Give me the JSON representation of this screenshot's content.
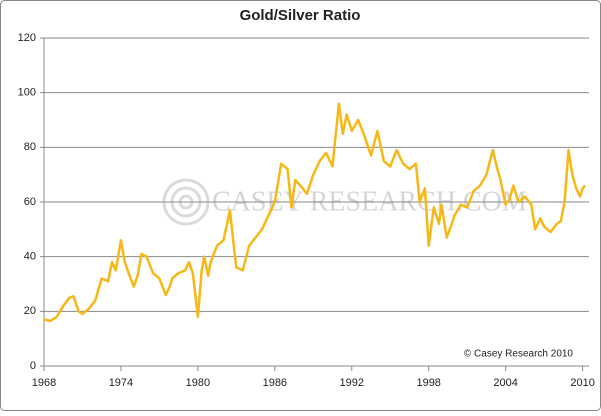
{
  "chart_data": {
    "type": "line",
    "title": "Gold/Silver Ratio",
    "watermark": "CASEY RESEARCH.COM",
    "annotation": "© Casey Research 2010",
    "x": [
      1968,
      1968.5,
      1969,
      1969.5,
      1970,
      1970.3,
      1970.7,
      1971,
      1971.5,
      1972,
      1972.5,
      1973,
      1973.3,
      1973.6,
      1974,
      1974.3,
      1974.6,
      1975,
      1975.3,
      1975.6,
      1976,
      1976.5,
      1977,
      1977.5,
      1977.8,
      1978,
      1978.5,
      1979,
      1979.3,
      1979.6,
      1980,
      1980.3,
      1980.5,
      1980.8,
      1981,
      1981.5,
      1982,
      1982.5,
      1982.8,
      1983,
      1983.5,
      1984,
      1984.5,
      1985,
      1985.5,
      1986,
      1986.5,
      1987,
      1987.3,
      1987.6,
      1988,
      1988.5,
      1989,
      1989.5,
      1990,
      1990.5,
      1991,
      1991.3,
      1991.6,
      1992,
      1992.5,
      1993,
      1993.5,
      1994,
      1994.5,
      1995,
      1995.5,
      1996,
      1996.5,
      1997,
      1997.3,
      1997.7,
      1998,
      1998.4,
      1998.8,
      1999,
      1999.4,
      1999.8,
      2000,
      2000.5,
      2001,
      2001.5,
      2002,
      2002.5,
      2003,
      2003.3,
      2003.6,
      2004,
      2004.3,
      2004.6,
      2005,
      2005.5,
      2006,
      2006.3,
      2006.7,
      2007,
      2007.5,
      2008,
      2008.3,
      2008.6,
      2008.9,
      2009.2,
      2009.5,
      2009.8,
      2010,
      2010.2
    ],
    "series": [
      {
        "name": "Gold/Silver Ratio",
        "color": "#f6b816",
        "values": [
          17,
          16.5,
          18,
          22,
          25,
          25.5,
          20,
          19,
          21,
          24,
          32,
          31,
          38,
          35,
          46,
          38,
          34,
          29,
          33,
          41,
          40,
          34,
          32,
          26,
          29,
          32,
          34,
          35,
          38,
          34,
          18,
          35,
          40,
          33,
          38,
          44,
          46,
          57,
          44,
          36,
          35,
          44,
          47,
          50,
          55,
          60,
          74,
          72,
          58,
          68,
          66,
          63,
          70,
          75,
          78,
          73,
          96,
          85,
          92,
          86,
          90,
          84,
          77,
          86,
          75,
          73,
          79,
          74,
          72,
          74,
          60,
          65,
          44,
          58,
          52,
          59,
          47,
          52,
          55,
          59,
          58,
          64,
          66,
          70,
          79,
          73,
          68,
          59,
          61,
          66,
          60,
          62,
          59,
          50,
          54,
          51,
          49,
          52,
          53,
          60,
          79,
          70,
          65,
          62,
          65,
          66
        ]
      }
    ],
    "xlim": [
      1968,
      2010.5
    ],
    "ylim": [
      0,
      120
    ],
    "xticks": [
      1968,
      1974,
      1980,
      1986,
      1992,
      1998,
      2004,
      2010
    ],
    "yticks": [
      0,
      20,
      40,
      60,
      80,
      100,
      120
    ],
    "grid": true
  }
}
